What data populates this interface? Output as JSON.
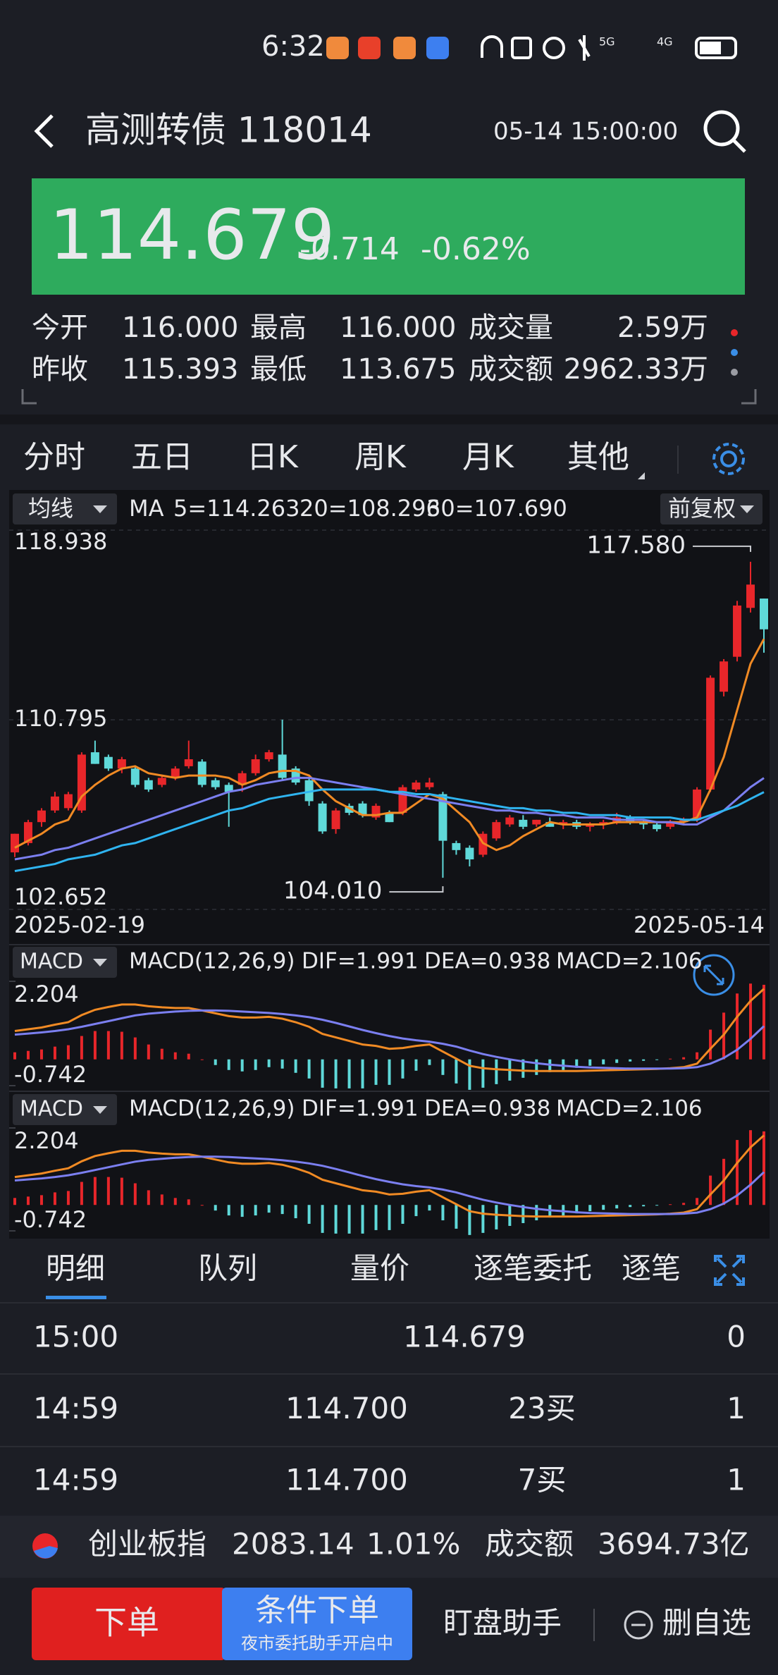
{
  "status_bar": {
    "time": "6:32"
  },
  "header": {
    "title": "高测转债 118014",
    "timestamp": "05-14 15:00:00"
  },
  "quote": {
    "price": "114.679",
    "change": "-0.714",
    "change_pct": "-0.62%"
  },
  "stats": [
    [
      {
        "label": "今开",
        "value": "116.000"
      },
      {
        "label": "最高",
        "value": "116.000"
      },
      {
        "label": "成交量",
        "value": "2.59万"
      }
    ],
    [
      {
        "label": "昨收",
        "value": "115.393"
      },
      {
        "label": "最低",
        "value": "113.675"
      },
      {
        "label": "成交额",
        "value": "2962.33万"
      }
    ]
  ],
  "period_tabs": [
    "分时",
    "五日",
    "日K",
    "周K",
    "月K",
    "其他"
  ],
  "chart_data": [
    {
      "type": "candlestick",
      "indicator_menu": "均线",
      "ma_label": "MA",
      "adjust_menu": "前复权",
      "categories": [
        "2025-02-19",
        null,
        null,
        null,
        null,
        null,
        null,
        null,
        null,
        null,
        null,
        null,
        null,
        null,
        null,
        null,
        null,
        null,
        null,
        null,
        null,
        null,
        null,
        null,
        null,
        null,
        null,
        null,
        null,
        null,
        null,
        null,
        null,
        null,
        null,
        null,
        null,
        null,
        null,
        null,
        null,
        null,
        null,
        null,
        null,
        null,
        null,
        null,
        null,
        null,
        null,
        null,
        null,
        null,
        null,
        null,
        "2025-05-14"
      ],
      "open": [
        105.1,
        105.5,
        106.4,
        106.9,
        107.0,
        106.9,
        109.4,
        109.2,
        108.7,
        108.7,
        108.2,
        108.0,
        108.3,
        108.8,
        109.0,
        108.2,
        108.0,
        108.0,
        108.5,
        109.1,
        109.3,
        108.7,
        108.2,
        107.2,
        106.1,
        107.1,
        107.2,
        106.6,
        106.8,
        106.8,
        107.8,
        107.9,
        107.6,
        105.5,
        105.3,
        105.0,
        105.7,
        106.3,
        106.5,
        106.3,
        106.4,
        106.3,
        106.4,
        106.2,
        106.3,
        106.4,
        106.6,
        106.4,
        106.3,
        106.2,
        106.4,
        106.5,
        107.8,
        112.0,
        113.5,
        115.6,
        116.0
      ],
      "high": [
        105.9,
        106.5,
        107.0,
        107.7,
        107.7,
        109.4,
        109.9,
        109.3,
        109.2,
        108.8,
        108.3,
        108.4,
        108.8,
        109.9,
        109.1,
        108.3,
        108.1,
        108.6,
        109.3,
        109.5,
        110.8,
        108.8,
        108.3,
        107.3,
        107.0,
        107.2,
        107.3,
        107.2,
        106.9,
        108.0,
        108.2,
        108.3,
        107.7,
        105.6,
        105.4,
        106.0,
        106.5,
        106.7,
        106.7,
        106.5,
        106.6,
        106.5,
        106.5,
        106.4,
        106.5,
        106.8,
        106.7,
        106.5,
        106.4,
        106.5,
        106.6,
        107.9,
        112.7,
        113.4,
        115.9,
        117.58,
        116.0
      ],
      "low": [
        104.9,
        105.4,
        106.2,
        106.8,
        106.9,
        106.8,
        108.9,
        108.6,
        108.5,
        107.9,
        107.7,
        107.9,
        108.2,
        108.7,
        107.9,
        107.8,
        106.2,
        107.7,
        108.4,
        109.0,
        108.2,
        108.0,
        107.1,
        105.9,
        105.9,
        106.7,
        106.6,
        106.5,
        106.4,
        106.7,
        107.7,
        107.8,
        104.01,
        105.0,
        104.5,
        104.9,
        105.6,
        106.2,
        106.1,
        106.2,
        106.2,
        106.1,
        106.1,
        106.0,
        106.1,
        106.3,
        106.3,
        106.1,
        106.0,
        106.1,
        106.3,
        106.4,
        107.7,
        111.8,
        113.3,
        115.4,
        113.675
      ],
      "close": [
        105.9,
        106.4,
        106.9,
        107.5,
        107.6,
        109.3,
        108.9,
        108.7,
        109.1,
        108.0,
        107.8,
        108.3,
        108.7,
        109.1,
        108.0,
        107.9,
        107.7,
        108.5,
        109.1,
        109.4,
        108.3,
        108.1,
        107.3,
        106.0,
        106.9,
        106.8,
        106.7,
        107.1,
        106.4,
        107.9,
        108.1,
        108.1,
        105.6,
        105.2,
        104.8,
        105.9,
        106.4,
        106.6,
        106.2,
        106.5,
        106.2,
        106.4,
        106.2,
        106.3,
        106.4,
        106.6,
        106.4,
        106.3,
        106.1,
        106.4,
        106.5,
        107.8,
        112.6,
        113.3,
        115.7,
        116.6,
        114.679
      ],
      "up_color": "#e8262a",
      "down_color": "#5fd9d9",
      "series": [
        {
          "name": "5=114.263",
          "color": "#f08a24",
          "values": [
            105.3,
            105.6,
            105.9,
            106.3,
            106.5,
            107.5,
            108.0,
            108.4,
            108.7,
            108.8,
            108.5,
            108.4,
            108.3,
            108.4,
            108.4,
            108.4,
            108.3,
            108.0,
            108.2,
            108.5,
            108.6,
            108.6,
            108.4,
            107.8,
            107.3,
            107.0,
            106.7,
            106.7,
            106.8,
            106.8,
            107.2,
            107.6,
            107.4,
            106.9,
            106.4,
            105.5,
            105.2,
            105.4,
            105.8,
            106.1,
            106.4,
            106.3,
            106.3,
            106.3,
            106.3,
            106.4,
            106.4,
            106.4,
            106.4,
            106.4,
            106.4,
            106.6,
            107.8,
            109.2,
            111.2,
            113.2,
            114.263
          ]
        },
        {
          "name": "20=108.296",
          "color": "#7b7ff0",
          "values": [
            104.8,
            104.9,
            105.0,
            105.2,
            105.3,
            105.5,
            105.7,
            105.9,
            106.1,
            106.3,
            106.5,
            106.7,
            106.9,
            107.1,
            107.3,
            107.5,
            107.7,
            107.8,
            108.0,
            108.1,
            108.2,
            108.3,
            108.3,
            108.2,
            108.1,
            108.0,
            107.9,
            107.8,
            107.7,
            107.6,
            107.5,
            107.4,
            107.3,
            107.2,
            107.1,
            107.0,
            106.9,
            106.9,
            106.8,
            106.8,
            106.7,
            106.7,
            106.6,
            106.6,
            106.6,
            106.5,
            106.5,
            106.5,
            106.4,
            106.4,
            106.3,
            106.3,
            106.6,
            106.9,
            107.4,
            107.9,
            108.296
          ]
        },
        {
          "name": "30=107.690",
          "color": "#2fb4f0",
          "values": [
            104.3,
            104.4,
            104.5,
            104.6,
            104.8,
            104.9,
            105.0,
            105.2,
            105.4,
            105.5,
            105.7,
            105.9,
            106.1,
            106.3,
            106.5,
            106.7,
            106.9,
            107.0,
            107.2,
            107.4,
            107.5,
            107.6,
            107.7,
            107.8,
            107.8,
            107.8,
            107.8,
            107.8,
            107.7,
            107.7,
            107.6,
            107.6,
            107.5,
            107.4,
            107.3,
            107.2,
            107.1,
            107.0,
            107.0,
            106.9,
            106.9,
            106.8,
            106.8,
            106.7,
            106.7,
            106.7,
            106.6,
            106.6,
            106.6,
            106.6,
            106.5,
            106.5,
            106.7,
            106.9,
            107.1,
            107.4,
            107.69
          ]
        }
      ],
      "ylim": [
        102.652,
        118.938
      ],
      "yticks": [
        118.938,
        110.795,
        102.652
      ],
      "grid": true,
      "max_label": "117.580",
      "min_label": "104.010"
    },
    {
      "type": "macd",
      "indicator_menu": "MACD",
      "params": "MACD(12,26,9)",
      "up_color": "#e8262a",
      "down_color": "#5fd9d9",
      "series": [
        {
          "name": "DIF=1.991",
          "color": "#f08a24",
          "type": "line",
          "values": [
            0.8,
            0.85,
            0.9,
            0.98,
            1.05,
            1.25,
            1.4,
            1.48,
            1.55,
            1.55,
            1.5,
            1.47,
            1.45,
            1.45,
            1.38,
            1.3,
            1.22,
            1.18,
            1.18,
            1.2,
            1.15,
            1.05,
            0.92,
            0.72,
            0.62,
            0.52,
            0.42,
            0.38,
            0.3,
            0.32,
            0.38,
            0.42,
            0.22,
            0.02,
            -0.18,
            -0.25,
            -0.28,
            -0.3,
            -0.32,
            -0.33,
            -0.33,
            -0.33,
            -0.33,
            -0.32,
            -0.31,
            -0.3,
            -0.29,
            -0.28,
            -0.27,
            -0.25,
            -0.22,
            -0.12,
            0.3,
            0.7,
            1.2,
            1.65,
            1.991
          ]
        },
        {
          "name": "DEA=0.938",
          "color": "#7b7ff0",
          "type": "line",
          "values": [
            0.7,
            0.73,
            0.76,
            0.8,
            0.85,
            0.92,
            1.0,
            1.08,
            1.16,
            1.24,
            1.29,
            1.32,
            1.35,
            1.37,
            1.38,
            1.38,
            1.37,
            1.35,
            1.33,
            1.31,
            1.28,
            1.24,
            1.19,
            1.12,
            1.03,
            0.93,
            0.83,
            0.74,
            0.66,
            0.59,
            0.54,
            0.5,
            0.44,
            0.36,
            0.25,
            0.15,
            0.07,
            0.0,
            -0.06,
            -0.11,
            -0.15,
            -0.18,
            -0.21,
            -0.23,
            -0.24,
            -0.25,
            -0.26,
            -0.26,
            -0.26,
            -0.26,
            -0.25,
            -0.22,
            -0.12,
            0.04,
            0.27,
            0.58,
            0.938
          ]
        },
        {
          "name": "MACD=2.106",
          "color": "#2fb4f0",
          "type": "bar",
          "values": [
            0.2,
            0.24,
            0.28,
            0.36,
            0.4,
            0.66,
            0.8,
            0.8,
            0.78,
            0.62,
            0.42,
            0.3,
            0.2,
            0.16,
            0.0,
            -0.16,
            -0.3,
            -0.34,
            -0.3,
            -0.22,
            -0.26,
            -0.38,
            -0.54,
            -0.8,
            -0.82,
            -0.82,
            -0.82,
            -0.72,
            -0.72,
            -0.54,
            -0.32,
            -0.16,
            -0.44,
            -0.68,
            -0.86,
            -0.8,
            -0.7,
            -0.6,
            -0.52,
            -0.44,
            -0.36,
            -0.3,
            -0.24,
            -0.18,
            -0.14,
            -0.1,
            -0.06,
            -0.04,
            -0.02,
            0.02,
            0.06,
            0.2,
            0.84,
            1.32,
            1.86,
            2.14,
            2.106
          ]
        }
      ],
      "ylim": [
        -0.742,
        2.204
      ],
      "yticks": [
        2.204,
        -0.742
      ]
    }
  ],
  "detail_tabs": [
    "明细",
    "队列",
    "量价",
    "逐笔委托",
    "逐笔"
  ],
  "trades": [
    {
      "time": "15:00",
      "price": "114.679",
      "count": "0"
    },
    {
      "time": "14:59",
      "price": "114.700",
      "volume": "23买",
      "count": "1"
    },
    {
      "time": "14:59",
      "price": "114.700",
      "volume": "7买",
      "count": "1"
    }
  ],
  "index_bar": {
    "name": "创业板指",
    "value": "2083.14",
    "change_pct": "1.01%",
    "turnover_label": "成交额",
    "turnover": "3694.73亿"
  },
  "actions": {
    "order": "下单",
    "conditional_order": "条件下单",
    "conditional_note": "夜市委托助手开启中",
    "watch_assistant": "盯盘助手",
    "remove_watchlist": "删自选"
  }
}
